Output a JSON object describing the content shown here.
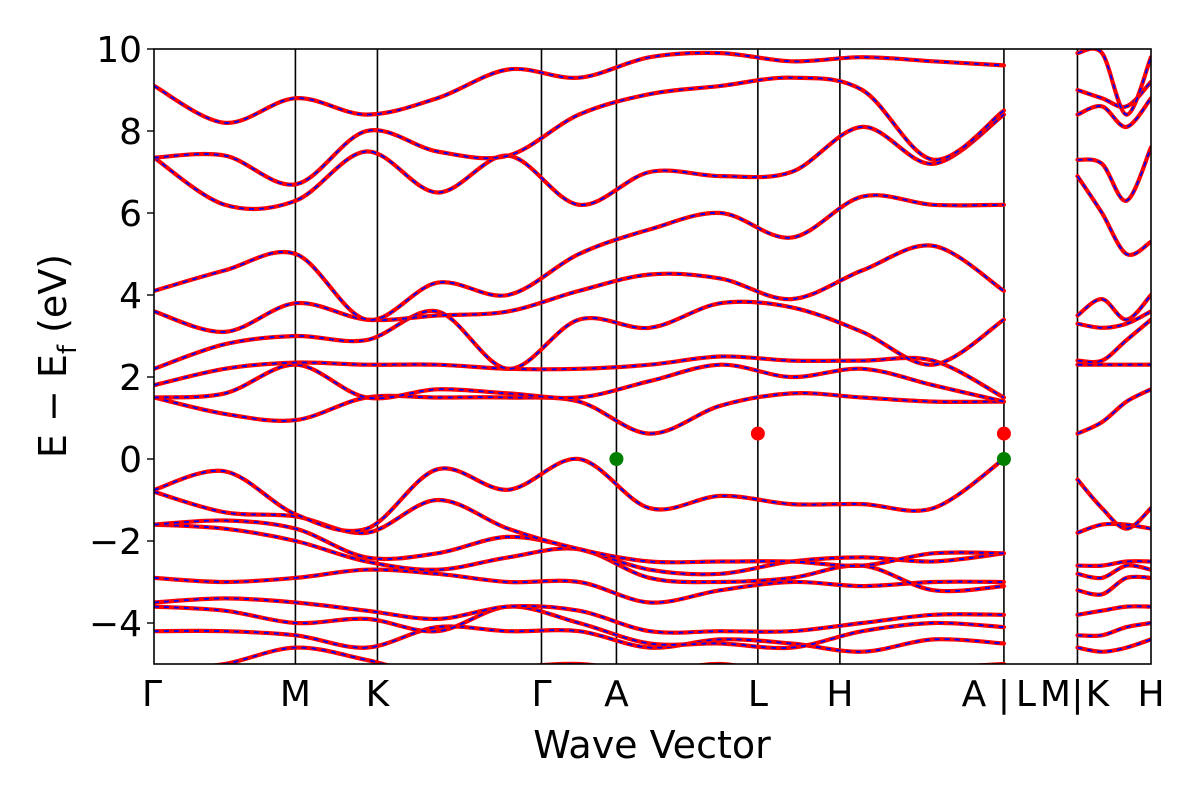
{
  "chart_data": {
    "type": "line",
    "title": "",
    "xlabel": "Wave Vector",
    "ylabel_parts": {
      "main": "E − E",
      "sub": "f",
      "unit": " (eV)"
    },
    "ylim": [
      -5,
      10
    ],
    "yticks": [
      -4,
      -2,
      0,
      2,
      4,
      6,
      8,
      10
    ],
    "ytick_labels": [
      "−4",
      "−2",
      "0",
      "2",
      "4",
      "6",
      "8",
      "10"
    ],
    "grid": false,
    "legend": "none",
    "k_path": {
      "labels": [
        "Γ",
        "M",
        "K",
        "Γ",
        "A",
        "L",
        "H",
        "A",
        "|",
        "L",
        "M",
        "|",
        "K",
        "H"
      ],
      "positions": [
        0,
        1.0,
        1.58,
        2.74,
        3.27,
        4.27,
        4.85,
        6.01,
        6.01,
        6.01,
        6.53,
        6.53,
        6.53,
        7.05
      ],
      "segment_breaks": [
        6.01,
        6.53
      ],
      "xlim": [
        0,
        7.05
      ]
    },
    "band_colors": {
      "line": "#ff0000",
      "dash": "#0000ff"
    },
    "markers": [
      {
        "k": 3.27,
        "energy": 0.0,
        "color": "#007f00",
        "kind": "VBM"
      },
      {
        "k": 6.01,
        "energy": 0.0,
        "color": "#007f00",
        "kind": "VBM"
      },
      {
        "k": 4.27,
        "energy": 0.62,
        "color": "#ff0000",
        "kind": "CBM"
      },
      {
        "k": 6.01,
        "energy": 0.62,
        "color": "#ff0000",
        "kind": "CBM"
      }
    ],
    "bands_main": [
      [
        -5.2,
        -5.0,
        -4.6,
        -4.9,
        -5.3,
        -5.1,
        -5.0,
        -5.2,
        -5.0,
        -5.3,
        -5.2,
        -5.1,
        -5.0
      ],
      [
        -4.2,
        -4.2,
        -4.3,
        -4.6,
        -4.1,
        -4.2,
        -4.2,
        -4.6,
        -4.4,
        -4.5,
        -4.7,
        -4.4,
        -4.5
      ],
      [
        -3.6,
        -3.7,
        -4.0,
        -3.9,
        -4.2,
        -3.6,
        -4.0,
        -4.5,
        -4.5,
        -4.6,
        -4.2,
        -4.0,
        -4.1
      ],
      [
        -3.5,
        -3.4,
        -3.5,
        -3.7,
        -3.9,
        -3.6,
        -3.7,
        -4.2,
        -4.2,
        -4.2,
        -4.0,
        -3.8,
        -3.8
      ],
      [
        -2.9,
        -3.0,
        -2.9,
        -2.7,
        -2.8,
        -3.0,
        -3.0,
        -3.5,
        -3.2,
        -3.0,
        -3.1,
        -3.0,
        -3.0
      ],
      [
        -1.6,
        -1.7,
        -2.0,
        -2.5,
        -2.7,
        -2.4,
        -2.2,
        -2.9,
        -3.0,
        -2.9,
        -2.6,
        -3.2,
        -3.1
      ],
      [
        -1.6,
        -1.5,
        -1.7,
        -2.4,
        -2.3,
        -1.9,
        -2.2,
        -2.7,
        -2.8,
        -2.5,
        -2.4,
        -2.5,
        -2.3
      ],
      [
        -0.8,
        -1.3,
        -1.4,
        -1.8,
        -1.0,
        -1.7,
        -2.2,
        -2.5,
        -2.5,
        -2.5,
        -2.6,
        -2.3,
        -2.3
      ],
      [
        -0.75,
        -0.3,
        -1.35,
        -1.7,
        -0.25,
        -0.75,
        0.0,
        -1.2,
        -0.9,
        -1.1,
        -1.1,
        -1.2,
        0.0
      ],
      [
        1.5,
        1.1,
        0.95,
        1.5,
        1.5,
        1.5,
        1.4,
        0.62,
        1.3,
        1.6,
        1.5,
        1.4,
        1.4
      ],
      [
        1.5,
        1.6,
        2.3,
        1.5,
        1.7,
        1.6,
        1.5,
        1.9,
        2.3,
        2.0,
        2.2,
        1.8,
        1.4
      ],
      [
        1.8,
        2.2,
        2.35,
        2.3,
        2.3,
        2.2,
        2.2,
        2.3,
        2.5,
        2.4,
        2.4,
        2.4,
        1.5
      ],
      [
        2.2,
        2.8,
        3.0,
        2.9,
        3.6,
        2.2,
        3.4,
        3.2,
        3.8,
        3.7,
        3.1,
        2.3,
        3.4
      ],
      [
        3.6,
        3.1,
        3.8,
        3.4,
        3.5,
        3.6,
        4.1,
        4.5,
        4.4,
        3.9,
        4.6,
        5.2,
        4.1
      ],
      [
        4.1,
        4.6,
        5.0,
        3.4,
        4.3,
        4.0,
        5.0,
        5.6,
        6.0,
        5.4,
        6.4,
        6.2,
        6.2
      ],
      [
        7.35,
        6.2,
        6.3,
        7.5,
        6.5,
        7.4,
        6.2,
        7.0,
        6.9,
        7.0,
        8.1,
        7.2,
        8.4
      ],
      [
        7.35,
        7.4,
        6.7,
        8.0,
        7.5,
        7.4,
        8.4,
        8.9,
        9.1,
        9.3,
        9.0,
        7.3,
        8.5
      ],
      [
        9.1,
        8.2,
        8.8,
        8.4,
        8.8,
        9.5,
        9.3,
        9.8,
        9.9,
        9.7,
        9.8,
        9.7,
        9.6
      ]
    ],
    "bands_right": [
      [
        -4.6,
        -4.7,
        -4.6,
        -4.4
      ],
      [
        -4.3,
        -4.3,
        -4.1,
        -4.0
      ],
      [
        -3.8,
        -3.7,
        -3.6,
        -3.6
      ],
      [
        -3.2,
        -3.3,
        -2.9,
        -2.9
      ],
      [
        -2.8,
        -2.9,
        -2.6,
        -2.7
      ],
      [
        -2.6,
        -2.6,
        -2.5,
        -2.5
      ],
      [
        -1.8,
        -1.6,
        -1.6,
        -1.7
      ],
      [
        -0.5,
        -1.2,
        -1.7,
        -1.2
      ],
      [
        0.62,
        0.9,
        1.4,
        1.7
      ],
      [
        2.3,
        2.3,
        2.3,
        2.3
      ],
      [
        2.4,
        2.4,
        2.9,
        3.4
      ],
      [
        3.3,
        3.2,
        3.3,
        3.6
      ],
      [
        3.5,
        3.9,
        3.4,
        4.0
      ],
      [
        6.9,
        6.0,
        5.0,
        5.3
      ],
      [
        7.3,
        7.2,
        6.3,
        7.6
      ],
      [
        8.4,
        8.6,
        8.1,
        8.8
      ],
      [
        9.0,
        8.8,
        8.6,
        9.2
      ],
      [
        9.9,
        9.9,
        8.4,
        9.8
      ]
    ]
  }
}
